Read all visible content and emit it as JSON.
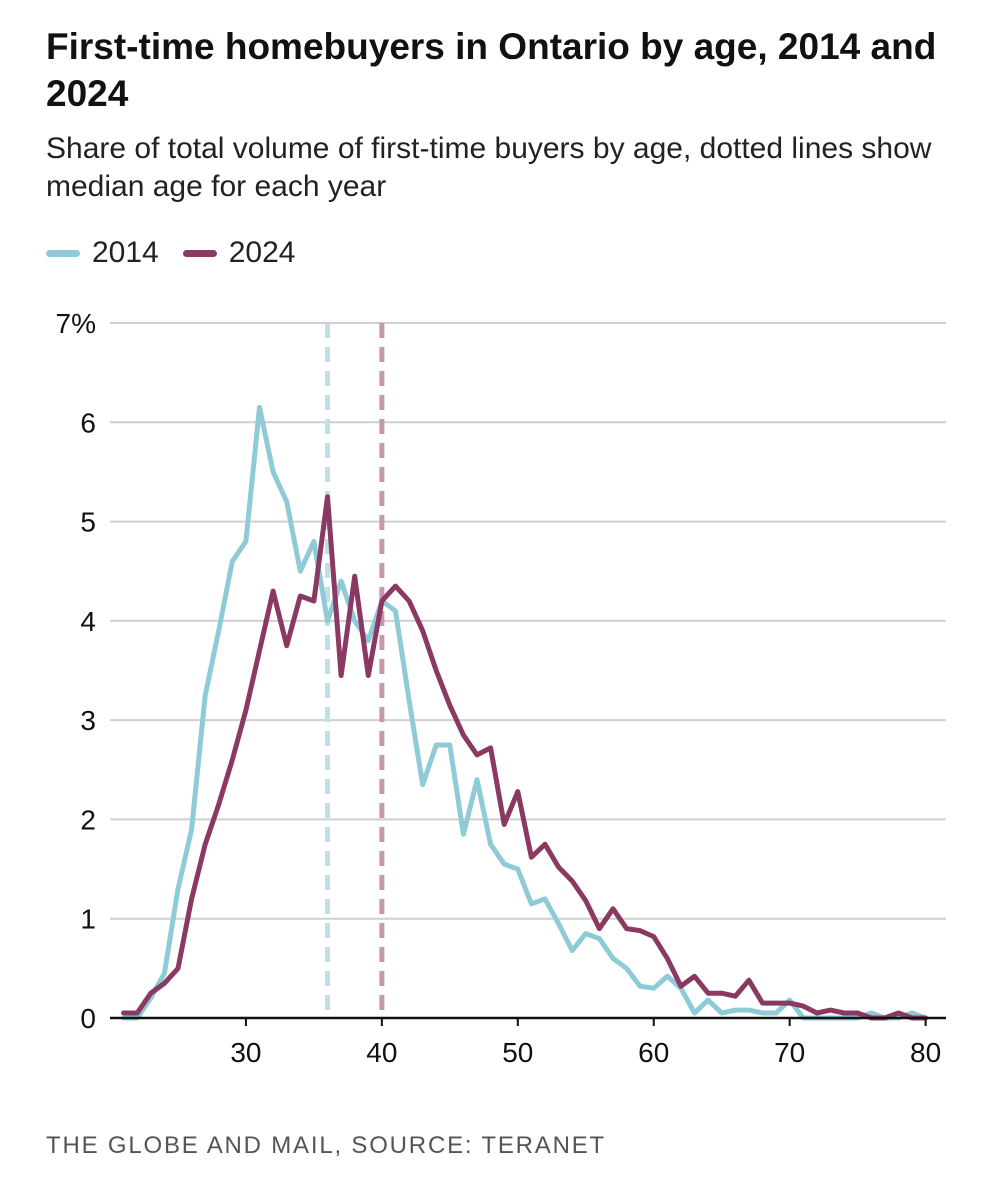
{
  "chart_data": {
    "type": "line",
    "title": "First-time homebuyers in Ontario by age, 2014 and 2024",
    "subtitle": "Share of total volume of first-time buyers by age, dotted lines show median age for each year",
    "xlabel": "",
    "ylabel": "",
    "xlim": [
      20,
      81.5
    ],
    "ylim": [
      0,
      7
    ],
    "x_ticks": [
      30,
      40,
      50,
      60,
      70,
      80
    ],
    "y_ticks": [
      0,
      1,
      2,
      3,
      4,
      5,
      6,
      7
    ],
    "y_tick_labels": [
      "0",
      "1",
      "2",
      "3",
      "4",
      "5",
      "6",
      "7%"
    ],
    "grid": "horizontal",
    "legend_position": "top-left",
    "series": [
      {
        "name": "2014",
        "color": "#8ecbd6",
        "median": 36,
        "x": [
          21,
          22,
          23,
          24,
          25,
          26,
          27,
          28,
          29,
          30,
          31,
          32,
          33,
          34,
          35,
          36,
          37,
          38,
          39,
          40,
          41,
          42,
          43,
          44,
          45,
          46,
          47,
          48,
          49,
          50,
          51,
          52,
          53,
          54,
          55,
          56,
          57,
          58,
          59,
          60,
          61,
          62,
          63,
          64,
          65,
          66,
          67,
          68,
          69,
          70,
          71,
          72,
          73,
          74,
          75,
          76,
          77,
          78,
          79,
          80
        ],
        "values": [
          0.0,
          0.0,
          0.2,
          0.45,
          1.3,
          1.9,
          3.25,
          3.9,
          4.6,
          4.8,
          6.15,
          5.5,
          5.2,
          4.5,
          4.8,
          4.0,
          4.4,
          4.0,
          3.8,
          4.2,
          4.1,
          3.2,
          2.35,
          2.75,
          2.75,
          1.85,
          2.4,
          1.75,
          1.55,
          1.5,
          1.15,
          1.2,
          0.95,
          0.68,
          0.85,
          0.8,
          0.6,
          0.5,
          0.32,
          0.3,
          0.42,
          0.3,
          0.05,
          0.18,
          0.05,
          0.08,
          0.08,
          0.05,
          0.05,
          0.18,
          0.0,
          0.0,
          0.0,
          0.0,
          0.0,
          0.05,
          0.0,
          0.0,
          0.05,
          0.0
        ]
      },
      {
        "name": "2024",
        "color": "#8a3a62",
        "median": 40,
        "x": [
          21,
          22,
          23,
          24,
          25,
          26,
          27,
          28,
          29,
          30,
          31,
          32,
          33,
          34,
          35,
          36,
          37,
          38,
          39,
          40,
          41,
          42,
          43,
          44,
          45,
          46,
          47,
          48,
          49,
          50,
          51,
          52,
          53,
          54,
          55,
          56,
          57,
          58,
          59,
          60,
          61,
          62,
          63,
          64,
          65,
          66,
          67,
          68,
          69,
          70,
          71,
          72,
          73,
          74,
          75,
          76,
          77,
          78,
          79,
          80
        ],
        "values": [
          0.05,
          0.05,
          0.25,
          0.35,
          0.5,
          1.2,
          1.75,
          2.15,
          2.6,
          3.1,
          3.7,
          4.3,
          3.75,
          4.25,
          4.2,
          5.25,
          3.45,
          4.45,
          3.45,
          4.2,
          4.35,
          4.2,
          3.9,
          3.5,
          3.15,
          2.85,
          2.65,
          2.72,
          1.95,
          2.28,
          1.62,
          1.75,
          1.52,
          1.38,
          1.18,
          0.9,
          1.1,
          0.9,
          0.88,
          0.82,
          0.6,
          0.32,
          0.42,
          0.25,
          0.25,
          0.22,
          0.38,
          0.15,
          0.15,
          0.15,
          0.12,
          0.05,
          0.08,
          0.05,
          0.05,
          0.0,
          0.0,
          0.05,
          0.0,
          0.0
        ]
      }
    ]
  },
  "source": "THE GLOBE AND MAIL, SOURCE: TERANET"
}
